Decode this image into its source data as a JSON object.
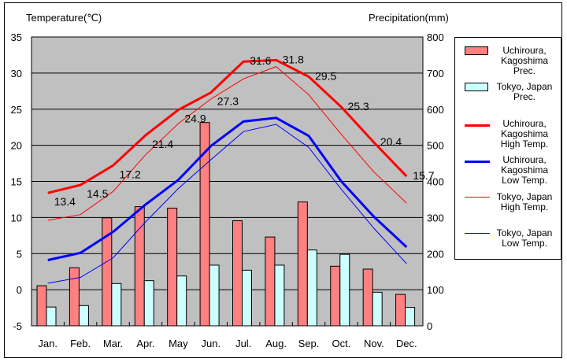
{
  "chart_data": {
    "type": "bar+line",
    "left_axis_label": "Temperature(℃)",
    "right_axis_label": "Precipitation(mm)",
    "categories": [
      "Jan.",
      "Feb.",
      "Mar.",
      "Apr.",
      "May",
      "Jun.",
      "Jul.",
      "Aug.",
      "Sep.",
      "Oct.",
      "Nov.",
      "Dec."
    ],
    "temp_ylim": [
      -5,
      35
    ],
    "temp_ticks": [
      "-5",
      "0",
      "5",
      "10",
      "15",
      "20",
      "25",
      "30",
      "35"
    ],
    "prec_ylim": [
      0,
      800
    ],
    "prec_ticks": [
      "0",
      "100",
      "200",
      "300",
      "400",
      "500",
      "600",
      "700",
      "800"
    ],
    "grid": true,
    "legend_placement": "right",
    "bar_series": [
      {
        "name": "Uchiroura, Kagoshima Prec.",
        "legend": [
          "Uchiroura,",
          "Kagoshima",
          "Prec."
        ],
        "color": "#ff8080",
        "values": [
          111,
          161,
          299,
          330,
          326,
          563,
          291,
          246,
          343,
          165,
          157,
          87
        ]
      },
      {
        "name": "Tokyo, Japan Prec.",
        "legend": [
          "Tokyo, Japan",
          "Prec."
        ],
        "color": "#ccffff",
        "values": [
          52,
          56,
          117,
          125,
          138,
          168,
          154,
          168,
          210,
          198,
          93,
          51
        ]
      }
    ],
    "line_series": [
      {
        "name": "Uchiroura, Kagoshima High Temp.",
        "legend": [
          "Uchiroura,",
          "Kagoshima",
          "High Temp."
        ],
        "color": "#ff0000",
        "width": 3,
        "values": [
          13.4,
          14.5,
          17.2,
          21.4,
          24.9,
          27.3,
          31.6,
          31.8,
          29.5,
          25.3,
          20.4,
          15.7
        ],
        "labels": [
          "13.4",
          "14.5",
          "17.2",
          "21.4",
          "24.9",
          "27.3",
          "31.6",
          "31.8",
          "29.5",
          "25.3",
          "20.4",
          "15.7"
        ]
      },
      {
        "name": "Uchiroura, Kagoshima Low Temp.",
        "legend": [
          "Uchiroura,",
          "Kagoshima",
          "Low Temp."
        ],
        "color": "#0000ff",
        "width": 3,
        "values": [
          4.1,
          5.1,
          8.0,
          11.8,
          15.2,
          19.9,
          23.3,
          23.8,
          21.3,
          15.0,
          10.1,
          5.9
        ]
      },
      {
        "name": "Tokyo, Japan High Temp.",
        "legend": [
          "Tokyo, Japan",
          "High Temp."
        ],
        "color": "#ff0000",
        "width": 1,
        "values": [
          9.6,
          10.4,
          13.6,
          18.7,
          23.0,
          26.4,
          29.2,
          30.9,
          27.0,
          21.5,
          16.3,
          12.0
        ]
      },
      {
        "name": "Tokyo, Japan Low Temp.",
        "legend": [
          "Tokyo, Japan",
          "Low Temp."
        ],
        "color": "#0000ff",
        "width": 1,
        "values": [
          0.9,
          1.7,
          4.4,
          9.4,
          14.0,
          18.0,
          21.9,
          22.9,
          19.7,
          13.9,
          8.5,
          3.6
        ]
      }
    ]
  }
}
